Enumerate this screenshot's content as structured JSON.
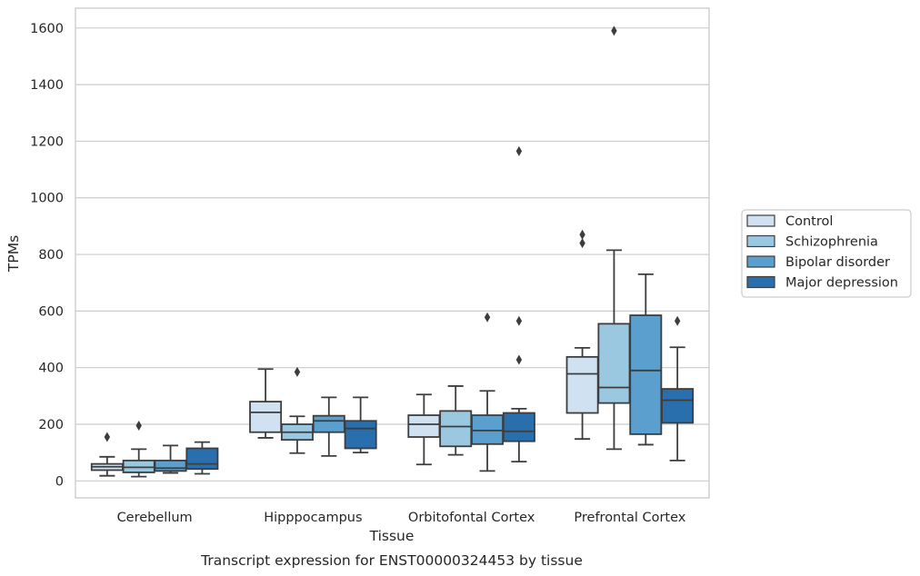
{
  "chart_data": {
    "type": "box",
    "xlabel": "Tissue",
    "ylabel": "TPMs",
    "caption": "Transcript expression for ENST00000324453 by tissue",
    "ylim": [
      -60,
      1670
    ],
    "yticks": [
      0,
      200,
      400,
      600,
      800,
      1000,
      1200,
      1400,
      1600
    ],
    "grid": "horizontal",
    "legend_position": "right",
    "categories": [
      "Cerebellum",
      "Hipppocampus",
      "Orbitofontal Cortex",
      "Prefrontal Cortex"
    ],
    "series": [
      {
        "name": "Control",
        "color": "#d0e2f2",
        "boxes": [
          {
            "whislo": 18,
            "q1": 38,
            "med": 50,
            "q3": 60,
            "whishi": 85,
            "fliers": [
              155
            ]
          },
          {
            "whislo": 152,
            "q1": 172,
            "med": 242,
            "q3": 280,
            "whishi": 395,
            "fliers": []
          },
          {
            "whislo": 58,
            "q1": 155,
            "med": 200,
            "q3": 232,
            "whishi": 305,
            "fliers": []
          },
          {
            "whislo": 148,
            "q1": 240,
            "med": 378,
            "q3": 438,
            "whishi": 470,
            "fliers": [
              840,
              870
            ]
          }
        ]
      },
      {
        "name": "Schizophrenia",
        "color": "#9ac8e0",
        "boxes": [
          {
            "whislo": 15,
            "q1": 30,
            "med": 48,
            "q3": 72,
            "whishi": 112,
            "fliers": [
              195
            ]
          },
          {
            "whislo": 98,
            "q1": 145,
            "med": 172,
            "q3": 200,
            "whishi": 228,
            "fliers": [
              385
            ]
          },
          {
            "whislo": 92,
            "q1": 122,
            "med": 192,
            "q3": 247,
            "whishi": 335,
            "fliers": []
          },
          {
            "whislo": 112,
            "q1": 275,
            "med": 330,
            "q3": 555,
            "whishi": 815,
            "fliers": [
              1590
            ]
          }
        ]
      },
      {
        "name": "Bipolar disorder",
        "color": "#5a9fcd",
        "boxes": [
          {
            "whislo": 28,
            "q1": 35,
            "med": 45,
            "q3": 72,
            "whishi": 125,
            "fliers": []
          },
          {
            "whislo": 88,
            "q1": 172,
            "med": 212,
            "q3": 230,
            "whishi": 295,
            "fliers": []
          },
          {
            "whislo": 35,
            "q1": 130,
            "med": 178,
            "q3": 232,
            "whishi": 318,
            "fliers": [
              578
            ]
          },
          {
            "whislo": 128,
            "q1": 165,
            "med": 390,
            "q3": 585,
            "whishi": 730,
            "fliers": []
          }
        ]
      },
      {
        "name": "Major depression",
        "color": "#2a6fad",
        "boxes": [
          {
            "whislo": 25,
            "q1": 42,
            "med": 60,
            "q3": 115,
            "whishi": 137,
            "fliers": []
          },
          {
            "whislo": 100,
            "q1": 115,
            "med": 185,
            "q3": 212,
            "whishi": 295,
            "fliers": []
          },
          {
            "whislo": 68,
            "q1": 140,
            "med": 175,
            "q3": 240,
            "whishi": 255,
            "fliers": [
              428,
              565,
              1165
            ]
          },
          {
            "whislo": 72,
            "q1": 205,
            "med": 285,
            "q3": 325,
            "whishi": 472,
            "fliers": [
              565
            ]
          }
        ]
      }
    ]
  }
}
